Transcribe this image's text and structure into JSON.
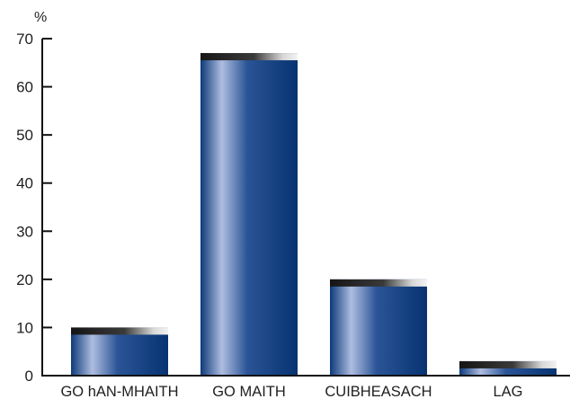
{
  "chart_data": {
    "type": "bar",
    "categories": [
      "GO hAN-MHAITH",
      "GO MAITH",
      "CUIBHEASACH",
      "LAG"
    ],
    "values": [
      10,
      67,
      20,
      3
    ],
    "ylim": [
      0,
      70
    ],
    "yticks": [
      0,
      10,
      20,
      30,
      40,
      50,
      60,
      70
    ],
    "unit_label": "%",
    "xlabel": "",
    "ylabel": "",
    "grid": false,
    "legend": "none",
    "colors": {
      "bar_dark": "#0d3a7a",
      "bar_light": "#aebde0",
      "cap_dark": "#1a1a1a",
      "cap_light": "#d8d8d8",
      "axis": "#111111"
    }
  }
}
